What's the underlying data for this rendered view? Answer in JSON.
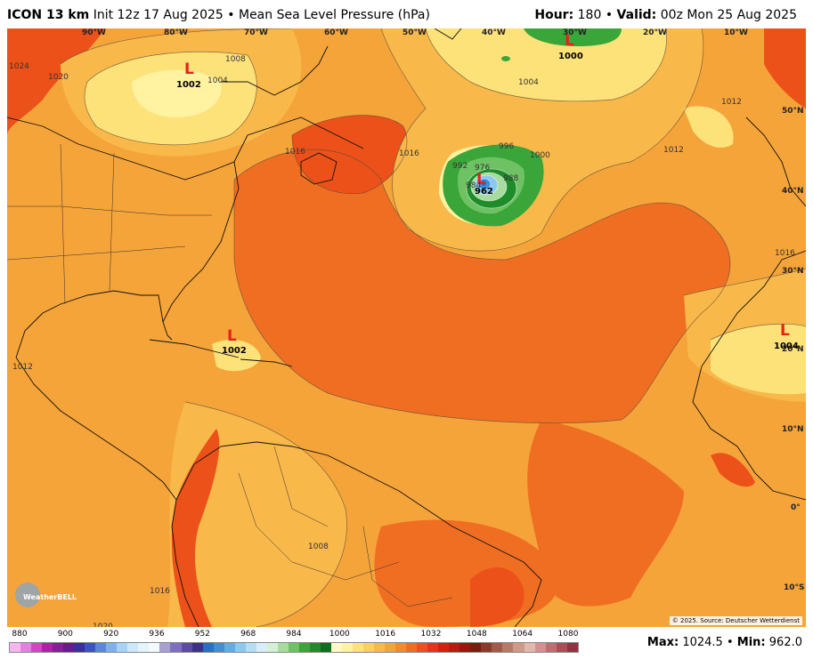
{
  "header": {
    "model": "ICON 13 km",
    "init": "Init 12z 17 Aug 2025",
    "bullet": "•",
    "field": "Mean Sea Level Pressure (hPa)",
    "hour_label": "Hour:",
    "hour_value": "180",
    "valid_label": "Valid:",
    "valid_value": "00z Mon 25 Aug 2025"
  },
  "map": {
    "lon_labels": [
      "90°W",
      "80°W",
      "70°W",
      "60°W",
      "50°W",
      "40°W",
      "30°W",
      "20°W",
      "10°W"
    ],
    "lat_labels": [
      "50°N",
      "40°N",
      "30°N",
      "20°N",
      "10°N",
      "0°",
      "10°S"
    ],
    "lows": [
      {
        "symbol": "L",
        "value": "1002",
        "name": "hudson-bay"
      },
      {
        "symbol": "L",
        "value": "1002",
        "name": "caribbean"
      },
      {
        "symbol": "L",
        "value": "962",
        "name": "atlantic-hurricane"
      },
      {
        "symbol": "L",
        "value": "1000",
        "name": "north-atlantic"
      },
      {
        "symbol": "L",
        "value": "1004",
        "name": "west-africa"
      }
    ],
    "isobar_labels": [
      "1024",
      "1020",
      "1016",
      "1012",
      "1008",
      "1004",
      "1000",
      "996",
      "992",
      "988",
      "984",
      "976",
      "1016",
      "1012",
      "1008",
      "1004",
      "1012",
      "1016",
      "1016",
      "1020"
    ],
    "copyright": "© 2025. Source: Deutscher Wetterdienst",
    "logo_text": "WeatherBELL"
  },
  "colorbar": {
    "ticks": [
      "880",
      "900",
      "920",
      "936",
      "952",
      "968",
      "984",
      "1000",
      "1016",
      "1032",
      "1048",
      "1064",
      "1080"
    ],
    "colors": [
      "#f7b6f0",
      "#e87fe0",
      "#d543c9",
      "#b21fb0",
      "#8e1a9f",
      "#6a1a8f",
      "#3b2ea0",
      "#3b53c4",
      "#5a86de",
      "#7fb0ee",
      "#a9d3f6",
      "#cce8fa",
      "#e4f4fb",
      "#f4fbfe",
      "#a7a0d0",
      "#7f6fc0",
      "#5d4aa6",
      "#3d3190",
      "#2a6ec7",
      "#3d8fd8",
      "#62ade4",
      "#8cc9ef",
      "#b5def5",
      "#d8eefa",
      "#d6f0d6",
      "#a8dc9e",
      "#6fc264",
      "#3aa63a",
      "#1e8c2a",
      "#0d6e20",
      "#fff9c8",
      "#fff2a0",
      "#fde27a",
      "#fbd05c",
      "#f8b84a",
      "#f5a43a",
      "#f38a2c",
      "#f06e22",
      "#ec5119",
      "#e83414",
      "#d42010",
      "#b81a0e",
      "#9c160c",
      "#7d1a10",
      "#8a3a2a",
      "#a05a48",
      "#b87a68",
      "#cf9a8a",
      "#e2b8ac",
      "#d49092",
      "#c46a72",
      "#b04a55",
      "#963240"
    ]
  },
  "stats": {
    "max_label": "Max:",
    "max_value": "1024.5",
    "min_label": "Min:",
    "min_value": "962.0"
  }
}
